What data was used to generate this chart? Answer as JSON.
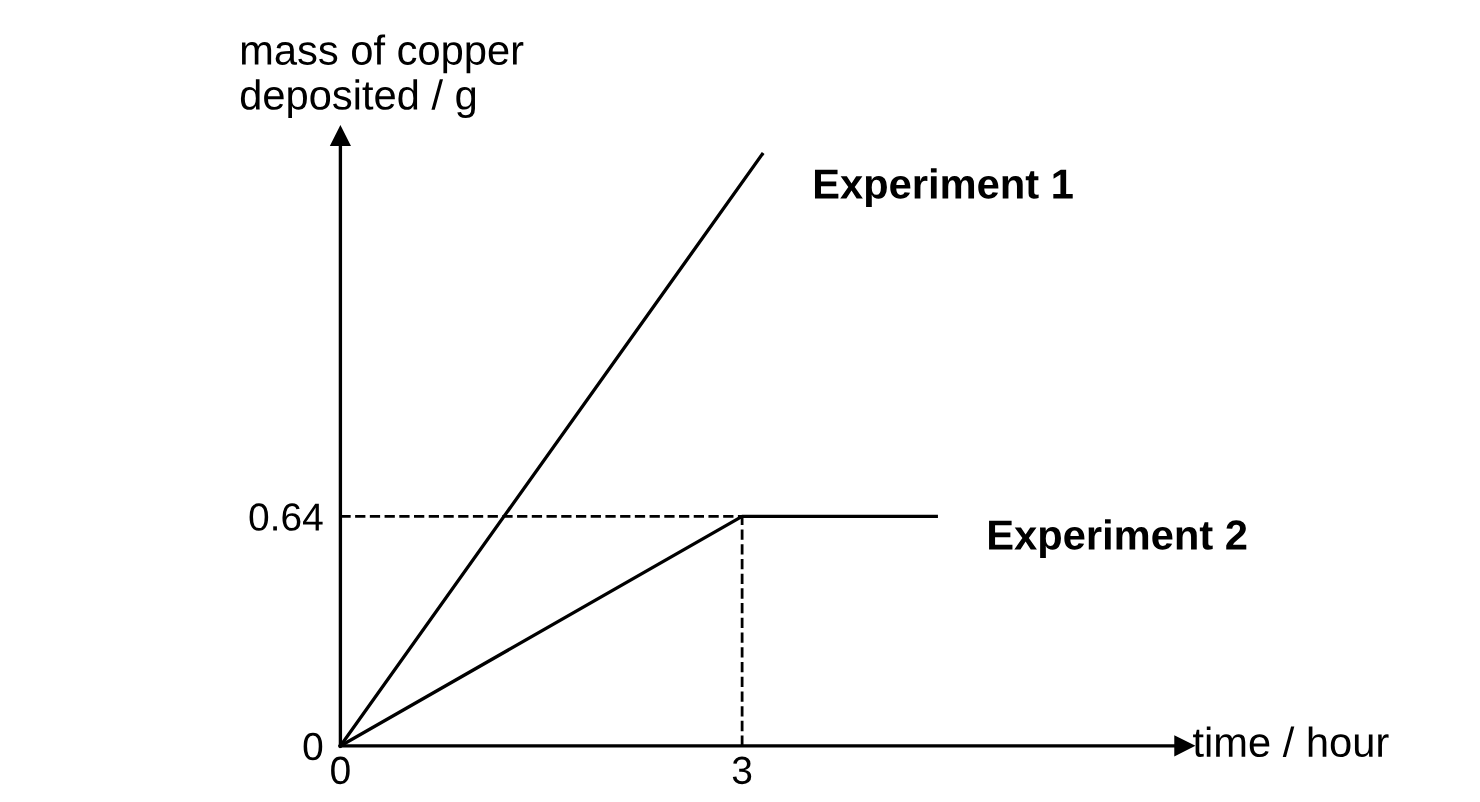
{
  "chart_data": {
    "type": "line",
    "xlabel": "time / hour",
    "ylabel": "mass of copper\ndeposited / g",
    "series": [
      {
        "name": "Experiment 1",
        "color": "#000000",
        "x": [
          0,
          3.15
        ],
        "values": [
          0,
          1.65
        ]
      },
      {
        "name": "Experiment 2",
        "color": "#000000",
        "x": [
          0,
          3,
          4.45
        ],
        "values": [
          0,
          0.64,
          0.64
        ]
      }
    ],
    "xlim": [
      0,
      6.3
    ],
    "ylim": [
      0,
      1.7
    ],
    "xticks": [
      0,
      3
    ],
    "yticks": [
      0,
      0.64
    ],
    "ref_lines": [
      {
        "axis": "x",
        "value": 3,
        "line_style": "dashed",
        "color": "#000000"
      },
      {
        "axis": "y",
        "value": 0.64,
        "line_style": "dashed",
        "color": "#000000"
      }
    ],
    "grid": false,
    "legend": false,
    "marker": "none",
    "line_style": "solid"
  }
}
